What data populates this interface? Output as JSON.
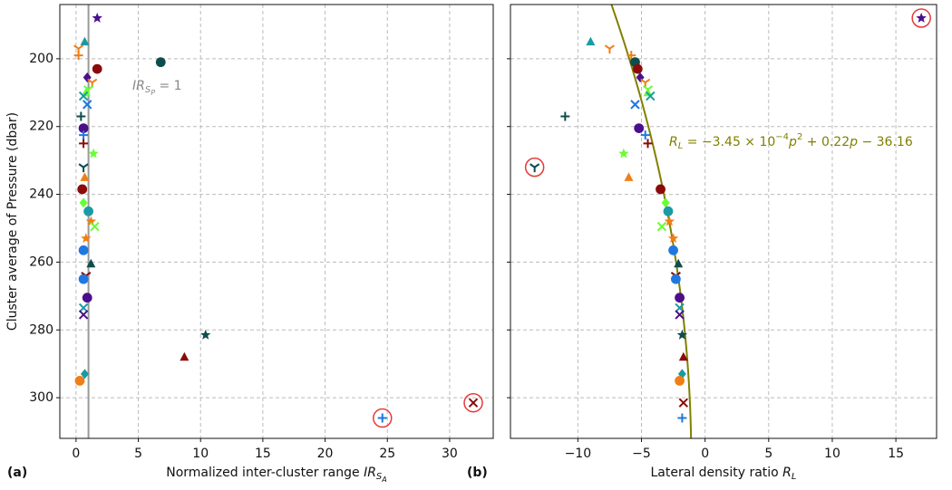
{
  "chart_data": [
    {
      "type": "scatter",
      "panel_label": "(a)",
      "x_label": [
        {
          "text": "Normalized inter-cluster range "
        },
        {
          "text": "IR",
          "style": "italic"
        },
        {
          "text": "S",
          "style": "sub"
        },
        {
          "text": "A",
          "style": "subsub"
        }
      ],
      "y_label": "Cluster average of Pressure (dbar)",
      "xlim": [
        -1.3,
        33.5
      ],
      "ylim": [
        184,
        312
      ],
      "y_inverted": true,
      "xticks": [
        0,
        5,
        10,
        15,
        20,
        25,
        30
      ],
      "yticks": [
        200,
        220,
        240,
        260,
        280,
        300
      ],
      "ytick_labels": true,
      "grid": true,
      "vline": 1,
      "vline_color": "#999999",
      "annotation": [
        {
          "text": "IR",
          "style": "italic"
        },
        {
          "text": "S",
          "style": "sub"
        },
        {
          "text": "P",
          "style": "subsub"
        },
        {
          "text": " = 1"
        }
      ],
      "annotation_color": "#888888",
      "x": [
        1.7,
        0.7,
        0.2,
        0.2,
        6.8,
        1.7,
        0.9,
        1.3,
        1.0,
        0.8,
        0.6,
        0.9,
        0.4,
        0.6,
        0.6,
        0.6,
        1.4,
        0.6,
        0.7,
        0.5,
        0.6,
        1.0,
        1.2,
        1.5,
        0.8,
        0.6,
        1.2,
        0.8,
        0.6,
        0.9,
        0.6,
        0.6,
        10.4,
        8.7,
        0.7,
        0.3,
        31.9,
        24.6
      ],
      "y": [
        188,
        195,
        197,
        199,
        201,
        203,
        205.5,
        207,
        209,
        210,
        211,
        213.5,
        217,
        220.5,
        222.5,
        225,
        228,
        232,
        235,
        238.5,
        242.5,
        245,
        248,
        249.5,
        253,
        256.5,
        260.5,
        264,
        265,
        270.5,
        273.5,
        275.5,
        281.5,
        288,
        293,
        295,
        301.5,
        306
      ],
      "colors": [
        "#4b0f8c",
        "#1a9aa5",
        "#f07e16",
        "#f07e16",
        "#0d4d4d",
        "#8b0a0a",
        "#4b0f8c",
        "#f07e16",
        "#66ff33",
        "#66ff33",
        "#1a9aa5",
        "#1f78e0",
        "#0d4d4d",
        "#4b0f8c",
        "#1f78e0",
        "#8b0a0a",
        "#66ff33",
        "#0d4d4d",
        "#f07e16",
        "#8b0a0a",
        "#66ff33",
        "#1a9aa5",
        "#f07e16",
        "#66ff33",
        "#f07e16",
        "#1f78e0",
        "#0d4d4d",
        "#8b0a0a",
        "#1f78e0",
        "#4b0f8c",
        "#1a9aa5",
        "#4b0f8c",
        "#0d4d4d",
        "#8b0a0a",
        "#1a9aa5",
        "#f07e16",
        "#8b0a0a",
        "#1f78e0"
      ],
      "markers": [
        "star",
        "triangle",
        "tri_down",
        "plus",
        "half",
        "half",
        "diamond",
        "tri_down",
        "tri_down",
        "triangle",
        "x",
        "x",
        "plus",
        "half",
        "plus",
        "plus",
        "star",
        "tri_down",
        "triangle",
        "half",
        "diamond",
        "half",
        "star",
        "x",
        "star",
        "half",
        "triangle",
        "tri_down",
        "half",
        "half",
        "x",
        "x",
        "star",
        "triangle",
        "diamond",
        "half",
        "x",
        "plus"
      ],
      "circled": [
        36,
        37
      ],
      "circle_color": "#e53935"
    },
    {
      "type": "scatter",
      "panel_label": "(b)",
      "x_label": [
        {
          "text": "Lateral density ratio "
        },
        {
          "text": "R",
          "style": "italic"
        },
        {
          "text": "L",
          "style": "sub"
        }
      ],
      "xlim": [
        -15.3,
        18.2
      ],
      "ylim": [
        184,
        312
      ],
      "y_inverted": true,
      "xticks": [
        {
          "value": -10,
          "label": "−10"
        },
        {
          "value": -5,
          "label": "−5"
        },
        0,
        5,
        10,
        15
      ],
      "yticks": [
        200,
        220,
        240,
        260,
        280,
        300
      ],
      "ytick_labels": false,
      "grid": true,
      "fit": {
        "coefficients": [
          -0.000345,
          0.22,
          -36.16
        ],
        "color": "#808000"
      },
      "annotation": [
        {
          "text": "R",
          "style": "italic"
        },
        {
          "text": "L",
          "style": "sub"
        },
        {
          "text": " = −3.45 × 10"
        },
        {
          "text": "−4",
          "style": "sup"
        },
        {
          "text": "p",
          "style": "italic"
        },
        {
          "text": "2",
          "style": "sup"
        },
        {
          "text": " + 0.22"
        },
        {
          "text": "p",
          "style": "italic"
        },
        {
          "text": " − 36.16"
        }
      ],
      "annotation_color": "#808000",
      "x": [
        17.0,
        -9.0,
        -7.5,
        -5.8,
        -5.5,
        -5.3,
        -5.1,
        -4.7,
        -4.5,
        -4.5,
        -4.3,
        -5.5,
        -11.0,
        -5.2,
        -4.7,
        -4.5,
        -6.4,
        -13.4,
        -6.0,
        -3.5,
        -3.1,
        -2.9,
        -2.8,
        -3.4,
        -2.5,
        -2.5,
        -2.1,
        -2.3,
        -2.3,
        -2.0,
        -2.0,
        -2.0,
        -1.8,
        -1.7,
        -1.8,
        -2.0,
        -1.7,
        -1.8
      ],
      "y": [
        188,
        195,
        197,
        199,
        201,
        203,
        205.5,
        207,
        209,
        210,
        211,
        213.5,
        217,
        220.5,
        222.5,
        225,
        228,
        232,
        235,
        238.5,
        242.5,
        245,
        248,
        249.5,
        253,
        256.5,
        260.5,
        264,
        265,
        270.5,
        273.5,
        275.5,
        281.5,
        288,
        293,
        295,
        301.5,
        306
      ],
      "colors": [
        "#4b0f8c",
        "#1a9aa5",
        "#f07e16",
        "#f07e16",
        "#0d4d4d",
        "#8b0a0a",
        "#4b0f8c",
        "#f07e16",
        "#66ff33",
        "#66ff33",
        "#1a9aa5",
        "#1f78e0",
        "#0d4d4d",
        "#4b0f8c",
        "#1f78e0",
        "#8b0a0a",
        "#66ff33",
        "#0d4d4d",
        "#f07e16",
        "#8b0a0a",
        "#66ff33",
        "#1a9aa5",
        "#f07e16",
        "#66ff33",
        "#f07e16",
        "#1f78e0",
        "#0d4d4d",
        "#8b0a0a",
        "#1f78e0",
        "#4b0f8c",
        "#1a9aa5",
        "#4b0f8c",
        "#0d4d4d",
        "#8b0a0a",
        "#1a9aa5",
        "#f07e16",
        "#8b0a0a",
        "#1f78e0"
      ],
      "markers": [
        "star",
        "triangle",
        "tri_down",
        "plus",
        "half",
        "half",
        "diamond",
        "tri_down",
        "tri_down",
        "triangle",
        "x",
        "x",
        "plus",
        "half",
        "plus",
        "plus",
        "star",
        "tri_down",
        "triangle",
        "half",
        "diamond",
        "half",
        "star",
        "x",
        "star",
        "half",
        "triangle",
        "tri_down",
        "half",
        "half",
        "x",
        "x",
        "star",
        "triangle",
        "diamond",
        "half",
        "x",
        "plus"
      ],
      "circled": [
        0,
        17
      ],
      "circle_color": "#e53935"
    }
  ]
}
